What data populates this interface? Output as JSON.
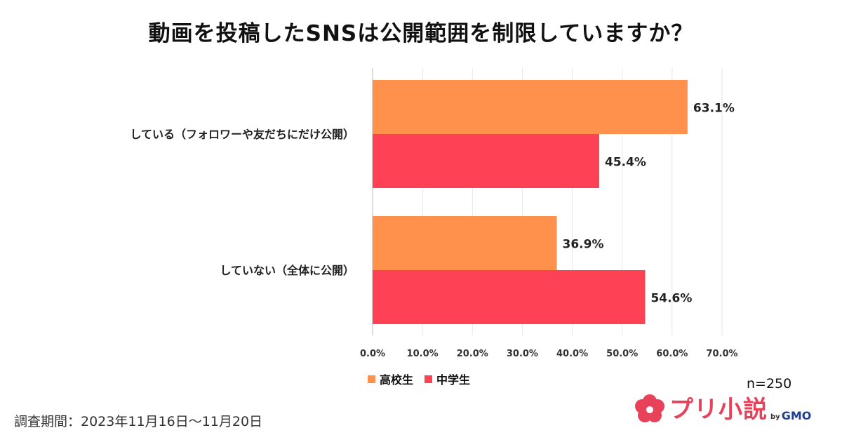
{
  "title": "動画を投稿したSNSは公開範囲を制限していますか？",
  "chart_data": {
    "type": "bar",
    "orientation": "horizontal",
    "title": "動画を投稿したSNSは公開範囲を制限していますか？",
    "categories": [
      "している（フォロワーや友だちにだけ公開）",
      "していない（全体に公開）"
    ],
    "series": [
      {
        "name": "高校生",
        "color": "#ff914d",
        "values": [
          63.1,
          36.9
        ],
        "labels": [
          "63.1%",
          "36.9%"
        ]
      },
      {
        "name": "中学生",
        "color": "#ff4155",
        "values": [
          45.4,
          54.6
        ],
        "labels": [
          "45.4%",
          "54.6%"
        ]
      }
    ],
    "xlim": [
      0,
      70
    ],
    "xticks": [
      0,
      10,
      20,
      30,
      40,
      50,
      60,
      70
    ],
    "xtick_labels": [
      "0.0%",
      "10.0%",
      "20.0%",
      "30.0%",
      "40.0%",
      "50.0%",
      "60.0%",
      "70.0%"
    ],
    "grid": true,
    "legend_position": "bottom-left"
  },
  "legend": {
    "high": {
      "label": "高校生",
      "color": "#ff914d"
    },
    "middle": {
      "label": "中学生",
      "color": "#ff4155"
    }
  },
  "sample_size": "n=250",
  "survey_period": "調査期間：2023年11月16日〜11月20日",
  "brand": {
    "name": "プリ小説",
    "by": "by",
    "company": "GMO",
    "color": "#e8425a",
    "icon": "flower-logo-icon"
  }
}
